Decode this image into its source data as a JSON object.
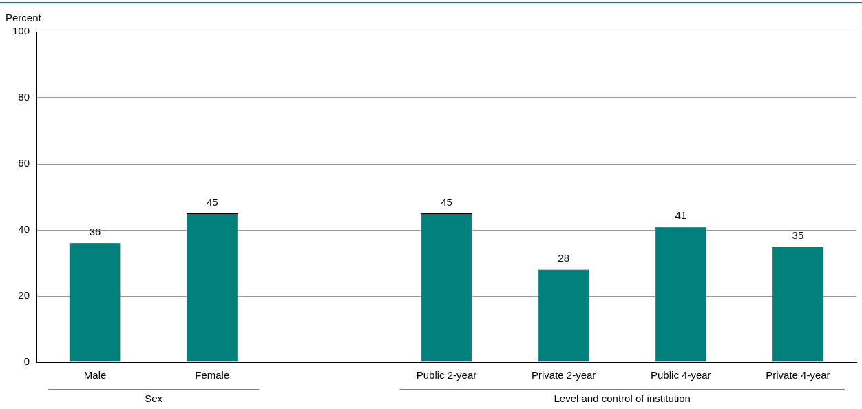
{
  "chart_data": {
    "type": "bar",
    "ylabel": "Percent",
    "categories": [
      "Male",
      "Female",
      null,
      "Public 2-year",
      "Private 2-year",
      "Public 4-year",
      "Private 4-year"
    ],
    "values": [
      36,
      45,
      null,
      45,
      28,
      41,
      35
    ],
    "color": "#00807b",
    "ylim": [
      0,
      100
    ],
    "yticks": [
      0,
      20,
      40,
      60,
      80,
      100
    ],
    "grid": "y",
    "legend": false,
    "data_labels": true,
    "annotations": [
      "Sex",
      "Level and control of institution"
    ]
  }
}
